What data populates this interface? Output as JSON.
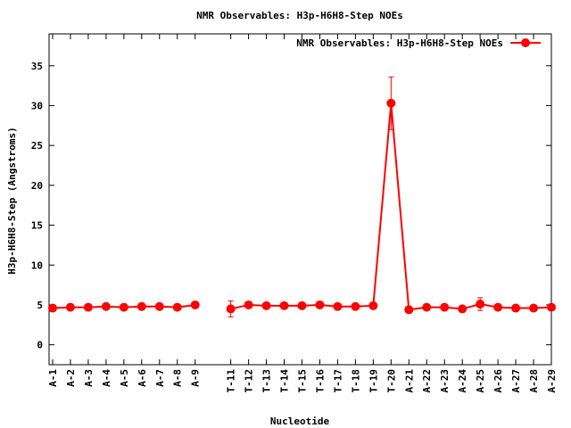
{
  "chart_data": {
    "type": "line",
    "title": "NMR Observables: H3p-H6H8-Step NOEs",
    "xlabel": "Nucleotide",
    "ylabel": "H3p-H6H8-Step (Angstroms)",
    "ylim": [
      -2.5,
      39
    ],
    "yticks": [
      0,
      5,
      10,
      15,
      20,
      25,
      30,
      35
    ],
    "xlim": [
      0.8,
      29
    ],
    "grid": false,
    "legend_position": "top-right",
    "categories": [
      "A-1",
      "A-2",
      "A-3",
      "A-4",
      "A-5",
      "A-6",
      "A-7",
      "A-8",
      "A-9",
      "T-11",
      "T-12",
      "T-13",
      "T-14",
      "T-15",
      "T-16",
      "T-17",
      "T-18",
      "T-19",
      "T-20",
      "A-21",
      "A-22",
      "A-23",
      "A-24",
      "A-25",
      "A-26",
      "A-27",
      "A-28",
      "A-29"
    ],
    "x": [
      1,
      2,
      3,
      4,
      5,
      6,
      7,
      8,
      9,
      11,
      12,
      13,
      14,
      15,
      16,
      17,
      18,
      19,
      20,
      21,
      22,
      23,
      24,
      25,
      26,
      27,
      28,
      29
    ],
    "series": [
      {
        "name": "NMR Observables: H3p-H6H8-Step NOEs",
        "color": "#ff0000",
        "values": [
          4.6,
          4.7,
          4.7,
          4.8,
          4.7,
          4.8,
          4.8,
          4.7,
          5.0,
          4.5,
          5.0,
          4.9,
          4.9,
          4.9,
          5.0,
          4.8,
          4.8,
          4.9,
          30.3,
          4.4,
          4.7,
          4.7,
          4.5,
          5.1,
          4.7,
          4.6,
          4.6,
          4.7
        ],
        "errors": [
          0.3,
          0.3,
          0.3,
          0.3,
          0.3,
          0.3,
          0.3,
          0.3,
          0.3,
          1.0,
          0.3,
          0.3,
          0.3,
          0.3,
          0.3,
          0.3,
          0.3,
          0.3,
          3.3,
          0.3,
          0.3,
          0.3,
          0.3,
          0.8,
          0.3,
          0.3,
          0.3,
          0.3
        ]
      }
    ]
  }
}
